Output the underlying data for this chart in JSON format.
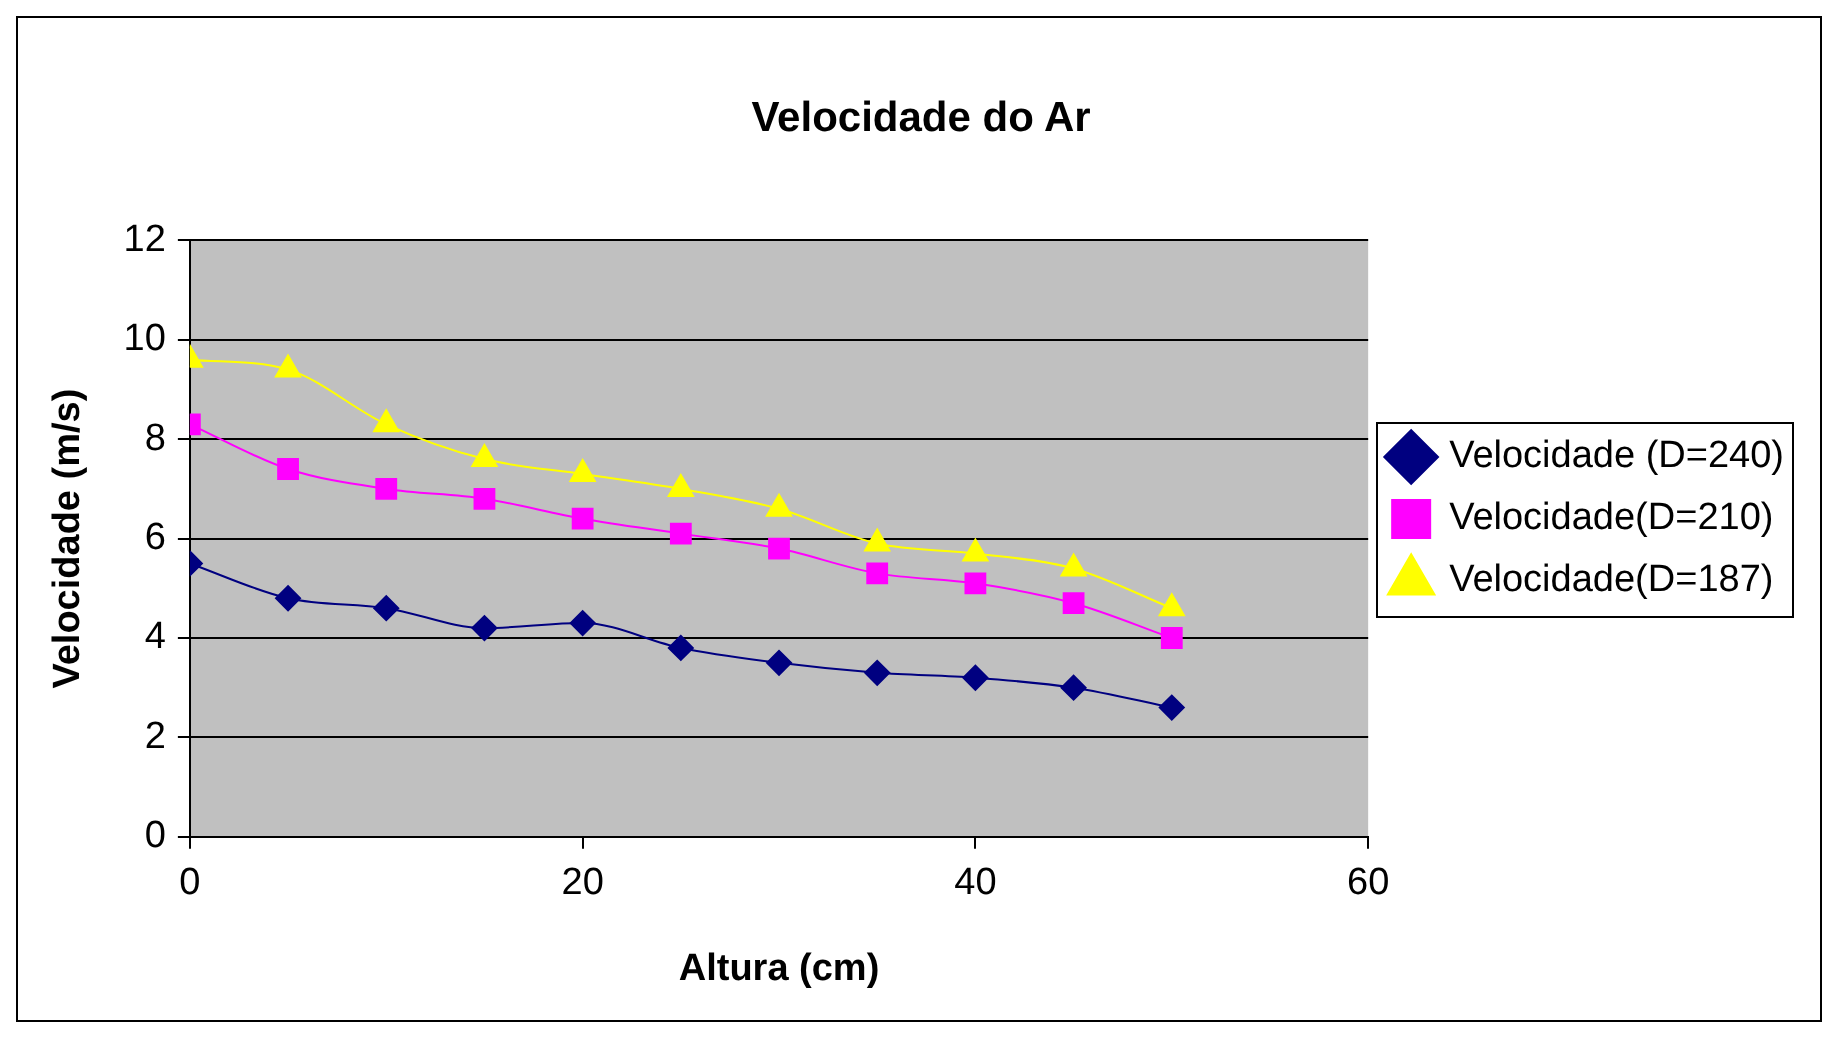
{
  "chart_data": {
    "type": "line",
    "title": "Velocidade do Ar",
    "xlabel": "Altura (cm)",
    "ylabel": "Velocidade (m/s)",
    "x": [
      0,
      5,
      10,
      15,
      20,
      25,
      30,
      35,
      40,
      45,
      50
    ],
    "series": [
      {
        "name": "Velocidade (D=240)",
        "color": "#000080",
        "marker": "diamond",
        "values": [
          5.5,
          4.8,
          4.6,
          4.2,
          4.3,
          3.8,
          3.5,
          3.3,
          3.2,
          3.0,
          2.6
        ]
      },
      {
        "name": "Velocidade(D=210)",
        "color": "#ff00ff",
        "marker": "square",
        "values": [
          8.3,
          7.4,
          7.0,
          6.8,
          6.4,
          6.1,
          5.8,
          5.3,
          5.1,
          4.7,
          4.0
        ]
      },
      {
        "name": "Velocidade(D=187)",
        "color": "#ffff00",
        "marker": "triangle",
        "values": [
          9.6,
          9.4,
          8.3,
          7.6,
          7.3,
          7.0,
          6.6,
          5.9,
          5.7,
          5.4,
          4.6
        ]
      }
    ],
    "xlim": [
      0,
      60
    ],
    "xticks": [
      0,
      20,
      40,
      60
    ],
    "ylim": [
      0,
      12
    ],
    "yticks": [
      0,
      2,
      4,
      6,
      8,
      10,
      12
    ],
    "grid": "y",
    "legend": "right"
  }
}
